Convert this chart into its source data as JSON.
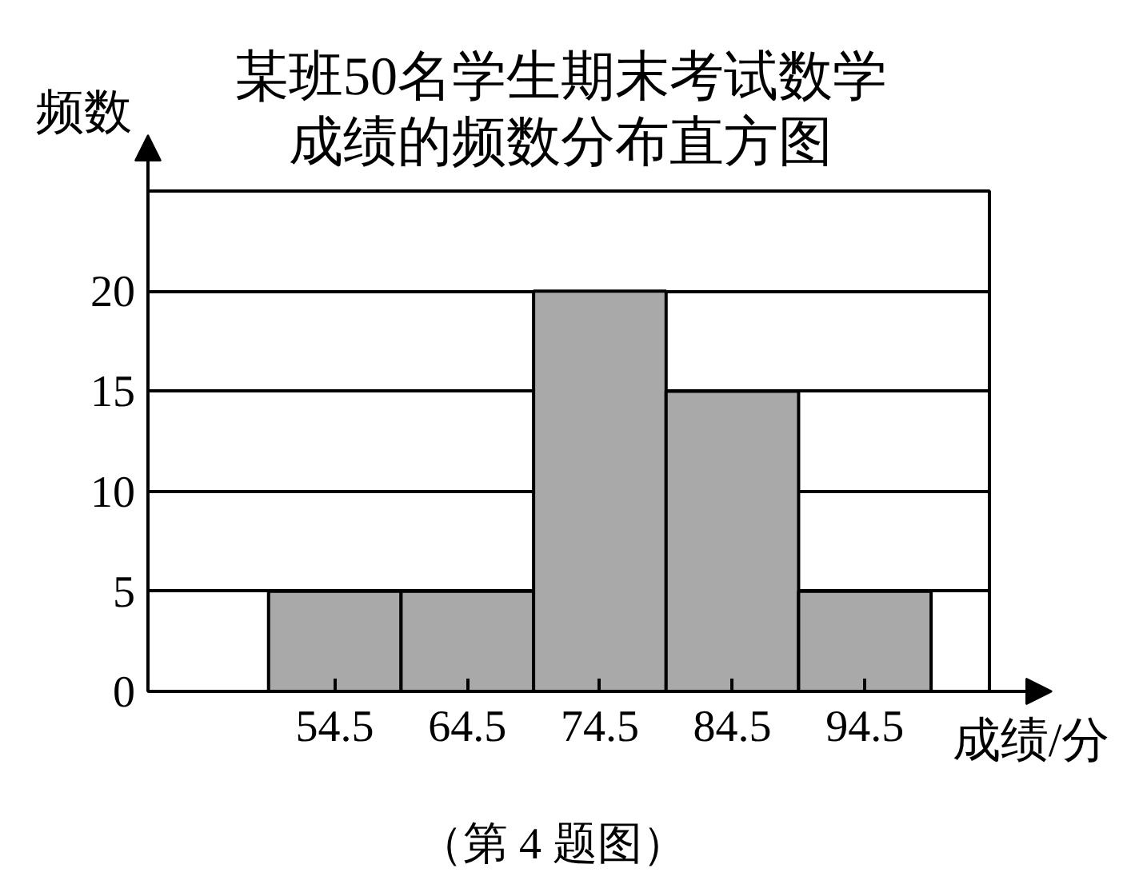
{
  "chart_data": {
    "type": "histogram",
    "title": "某班50名学生期末考试数学成绩的频数分布直方图",
    "xlabel": "成绩/分",
    "ylabel": "频数",
    "annotations": [
      "（第 4 题图）"
    ],
    "bins": [
      49.5,
      59.5,
      69.5,
      79.5,
      89.5,
      99.5
    ],
    "values": [
      5,
      5,
      20,
      15,
      5
    ],
    "color": "#a9a9a9",
    "xlim": [
      40.4,
      103.9
    ],
    "xticks": [
      54.5,
      64.5,
      74.5,
      84.5,
      94.5
    ],
    "ylim": [
      0,
      25
    ],
    "yticks": [
      0,
      5,
      10,
      15,
      20
    ],
    "grid": "y"
  }
}
